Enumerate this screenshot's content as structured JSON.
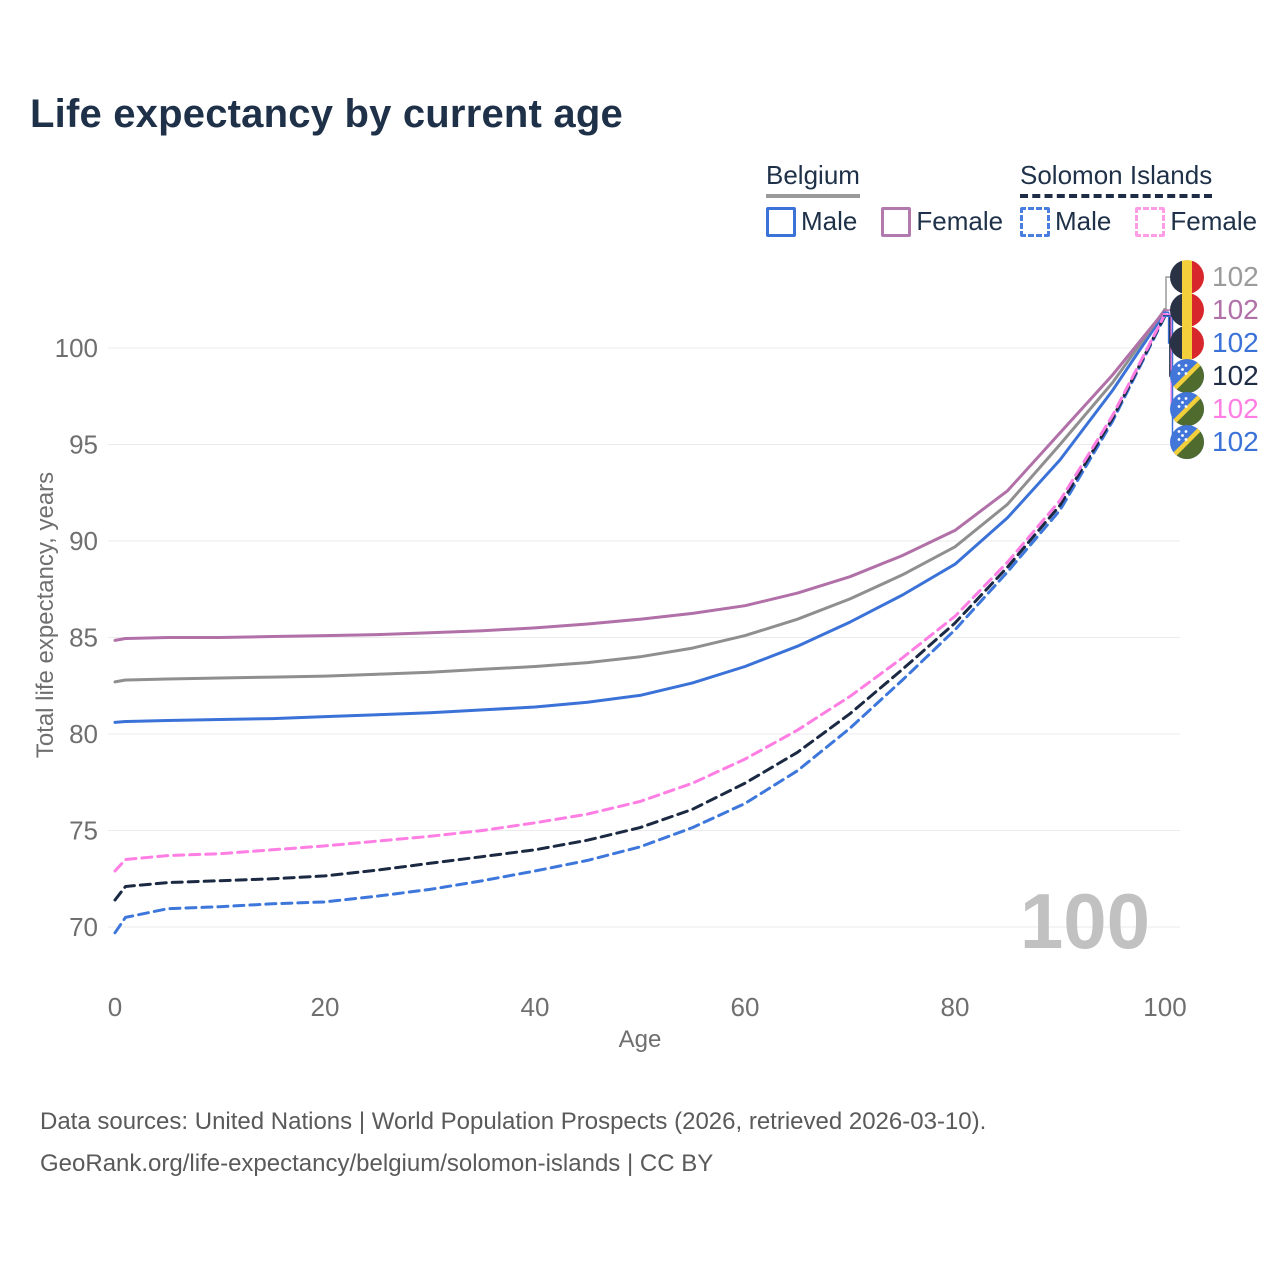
{
  "page": {
    "title": "Life expectancy by current age"
  },
  "legend": {
    "groups": [
      {
        "label": "Belgium",
        "underline_style": "solid",
        "underline_color": "#9a9a9a",
        "items": [
          {
            "label": "Male",
            "box_color": "#3b72d8",
            "box_style": "solid"
          },
          {
            "label": "Female",
            "box_color": "#b279ae",
            "box_style": "solid"
          }
        ]
      },
      {
        "label": "Solomon Islands",
        "underline_style": "dashed",
        "underline_color": "#1e2c45",
        "items": [
          {
            "label": "Male",
            "box_color": "#4a7de0",
            "box_style": "dashed"
          },
          {
            "label": "Female",
            "box_color": "#ff9ce8",
            "box_style": "dashed"
          }
        ]
      }
    ]
  },
  "chart_data": {
    "type": "line",
    "title": "Life expectancy by current age",
    "xlabel": "Age",
    "ylabel": "Total life expectancy, years",
    "xlim": [
      0,
      100
    ],
    "ylim": [
      68.5,
      103
    ],
    "xticks": [
      0,
      20,
      40,
      60,
      80,
      100
    ],
    "yticks": [
      70,
      75,
      80,
      85,
      90,
      95,
      100
    ],
    "grid": "horizontal-only",
    "gridline_color": "#ebebeb",
    "tick_color": "#6f6f6f",
    "watermark": "100",
    "watermark_color": "#c1c1c1",
    "legend_position": "top-right",
    "series": [
      {
        "name": "Belgium Male",
        "country": "Belgium",
        "sex": "Male",
        "color": "#3b72d8",
        "style": "solid",
        "points": [
          [
            0,
            80.6
          ],
          [
            1,
            80.65
          ],
          [
            5,
            80.7
          ],
          [
            10,
            80.75
          ],
          [
            15,
            80.8
          ],
          [
            20,
            80.9
          ],
          [
            25,
            81.0
          ],
          [
            30,
            81.1
          ],
          [
            35,
            81.25
          ],
          [
            40,
            81.4
          ],
          [
            45,
            81.65
          ],
          [
            50,
            82.0
          ],
          [
            55,
            82.65
          ],
          [
            60,
            83.5
          ],
          [
            65,
            84.55
          ],
          [
            70,
            85.8
          ],
          [
            75,
            87.2
          ],
          [
            80,
            88.8
          ],
          [
            85,
            91.2
          ],
          [
            90,
            94.2
          ],
          [
            95,
            97.8
          ],
          [
            100,
            101.85
          ]
        ]
      },
      {
        "name": "Belgium",
        "country": "Belgium",
        "sex": "Combined",
        "color": "#8f8f8f",
        "style": "solid",
        "points": [
          [
            0,
            82.7
          ],
          [
            1,
            82.8
          ],
          [
            5,
            82.85
          ],
          [
            10,
            82.9
          ],
          [
            15,
            82.95
          ],
          [
            20,
            83.0
          ],
          [
            25,
            83.1
          ],
          [
            30,
            83.2
          ],
          [
            35,
            83.35
          ],
          [
            40,
            83.5
          ],
          [
            45,
            83.7
          ],
          [
            50,
            84.0
          ],
          [
            55,
            84.45
          ],
          [
            60,
            85.1
          ],
          [
            65,
            85.95
          ],
          [
            70,
            87.0
          ],
          [
            75,
            88.25
          ],
          [
            80,
            89.7
          ],
          [
            85,
            91.9
          ],
          [
            90,
            95.0
          ],
          [
            95,
            98.2
          ],
          [
            100,
            102.0
          ]
        ]
      },
      {
        "name": "Belgium Female",
        "country": "Belgium",
        "sex": "Female",
        "color": "#b170a8",
        "style": "solid",
        "points": [
          [
            0,
            84.85
          ],
          [
            1,
            84.95
          ],
          [
            5,
            85.0
          ],
          [
            10,
            85.0
          ],
          [
            15,
            85.05
          ],
          [
            20,
            85.1
          ],
          [
            25,
            85.15
          ],
          [
            30,
            85.25
          ],
          [
            35,
            85.35
          ],
          [
            40,
            85.5
          ],
          [
            45,
            85.7
          ],
          [
            50,
            85.95
          ],
          [
            55,
            86.25
          ],
          [
            60,
            86.65
          ],
          [
            65,
            87.3
          ],
          [
            70,
            88.15
          ],
          [
            75,
            89.25
          ],
          [
            80,
            90.55
          ],
          [
            85,
            92.6
          ],
          [
            90,
            95.6
          ],
          [
            95,
            98.6
          ],
          [
            100,
            101.95
          ]
        ]
      },
      {
        "name": "Solomon Islands Male",
        "country": "Solomon Islands",
        "sex": "Male",
        "color": "#3e77db",
        "style": "dashed",
        "points": [
          [
            0,
            69.7
          ],
          [
            1,
            70.5
          ],
          [
            5,
            70.95
          ],
          [
            10,
            71.05
          ],
          [
            15,
            71.2
          ],
          [
            20,
            71.3
          ],
          [
            25,
            71.6
          ],
          [
            30,
            71.95
          ],
          [
            35,
            72.4
          ],
          [
            40,
            72.9
          ],
          [
            45,
            73.45
          ],
          [
            50,
            74.15
          ],
          [
            55,
            75.15
          ],
          [
            60,
            76.4
          ],
          [
            65,
            78.1
          ],
          [
            70,
            80.3
          ],
          [
            75,
            82.8
          ],
          [
            80,
            85.4
          ],
          [
            85,
            88.4
          ],
          [
            90,
            91.6
          ],
          [
            95,
            96.2
          ],
          [
            100,
            101.65
          ]
        ]
      },
      {
        "name": "Solomon Islands",
        "country": "Solomon Islands",
        "sex": "Combined",
        "color": "#1b2a42",
        "style": "dashed",
        "points": [
          [
            0,
            71.4
          ],
          [
            1,
            72.1
          ],
          [
            5,
            72.3
          ],
          [
            10,
            72.4
          ],
          [
            15,
            72.5
          ],
          [
            20,
            72.65
          ],
          [
            25,
            72.95
          ],
          [
            30,
            73.3
          ],
          [
            35,
            73.65
          ],
          [
            40,
            74.0
          ],
          [
            45,
            74.5
          ],
          [
            50,
            75.15
          ],
          [
            55,
            76.1
          ],
          [
            60,
            77.45
          ],
          [
            65,
            79.05
          ],
          [
            70,
            81.05
          ],
          [
            75,
            83.35
          ],
          [
            80,
            85.75
          ],
          [
            85,
            88.65
          ],
          [
            90,
            91.85
          ],
          [
            95,
            96.35
          ],
          [
            100,
            101.7
          ]
        ]
      },
      {
        "name": "Solomon Islands Female",
        "country": "Solomon Islands",
        "sex": "Female",
        "color": "#ff7ee3",
        "style": "dashed",
        "points": [
          [
            0,
            72.9
          ],
          [
            1,
            73.5
          ],
          [
            5,
            73.7
          ],
          [
            10,
            73.8
          ],
          [
            15,
            74.0
          ],
          [
            20,
            74.2
          ],
          [
            25,
            74.45
          ],
          [
            30,
            74.7
          ],
          [
            35,
            75.0
          ],
          [
            40,
            75.4
          ],
          [
            45,
            75.85
          ],
          [
            50,
            76.5
          ],
          [
            55,
            77.45
          ],
          [
            60,
            78.7
          ],
          [
            65,
            80.2
          ],
          [
            70,
            81.95
          ],
          [
            75,
            83.95
          ],
          [
            80,
            86.1
          ],
          [
            85,
            88.9
          ],
          [
            90,
            92.1
          ],
          [
            95,
            96.5
          ],
          [
            100,
            101.75
          ]
        ]
      }
    ]
  },
  "end_labels": [
    {
      "flag": "belgium",
      "series": "Belgium",
      "value": "102",
      "color": "#9b9b9b"
    },
    {
      "flag": "belgium",
      "series": "Belgium Female",
      "value": "102",
      "color": "#b170a8"
    },
    {
      "flag": "belgium",
      "series": "Belgium Male",
      "value": "102",
      "color": "#3b72d8"
    },
    {
      "flag": "solomon-islands",
      "series": "Solomon Islands",
      "value": "102",
      "color": "#1e2c45"
    },
    {
      "flag": "solomon-islands",
      "series": "Solomon Islands Female",
      "value": "102",
      "color": "#ff7ee3"
    },
    {
      "flag": "solomon-islands",
      "series": "Solomon Islands Male",
      "value": "102",
      "color": "#3b72d8"
    }
  ],
  "footer": {
    "line1": "Data sources: United Nations | World Population Prospects (2026, retrieved 2026-03-10).",
    "line2": "GeoRank.org/life-expectancy/belgium/solomon-islands | CC BY"
  }
}
